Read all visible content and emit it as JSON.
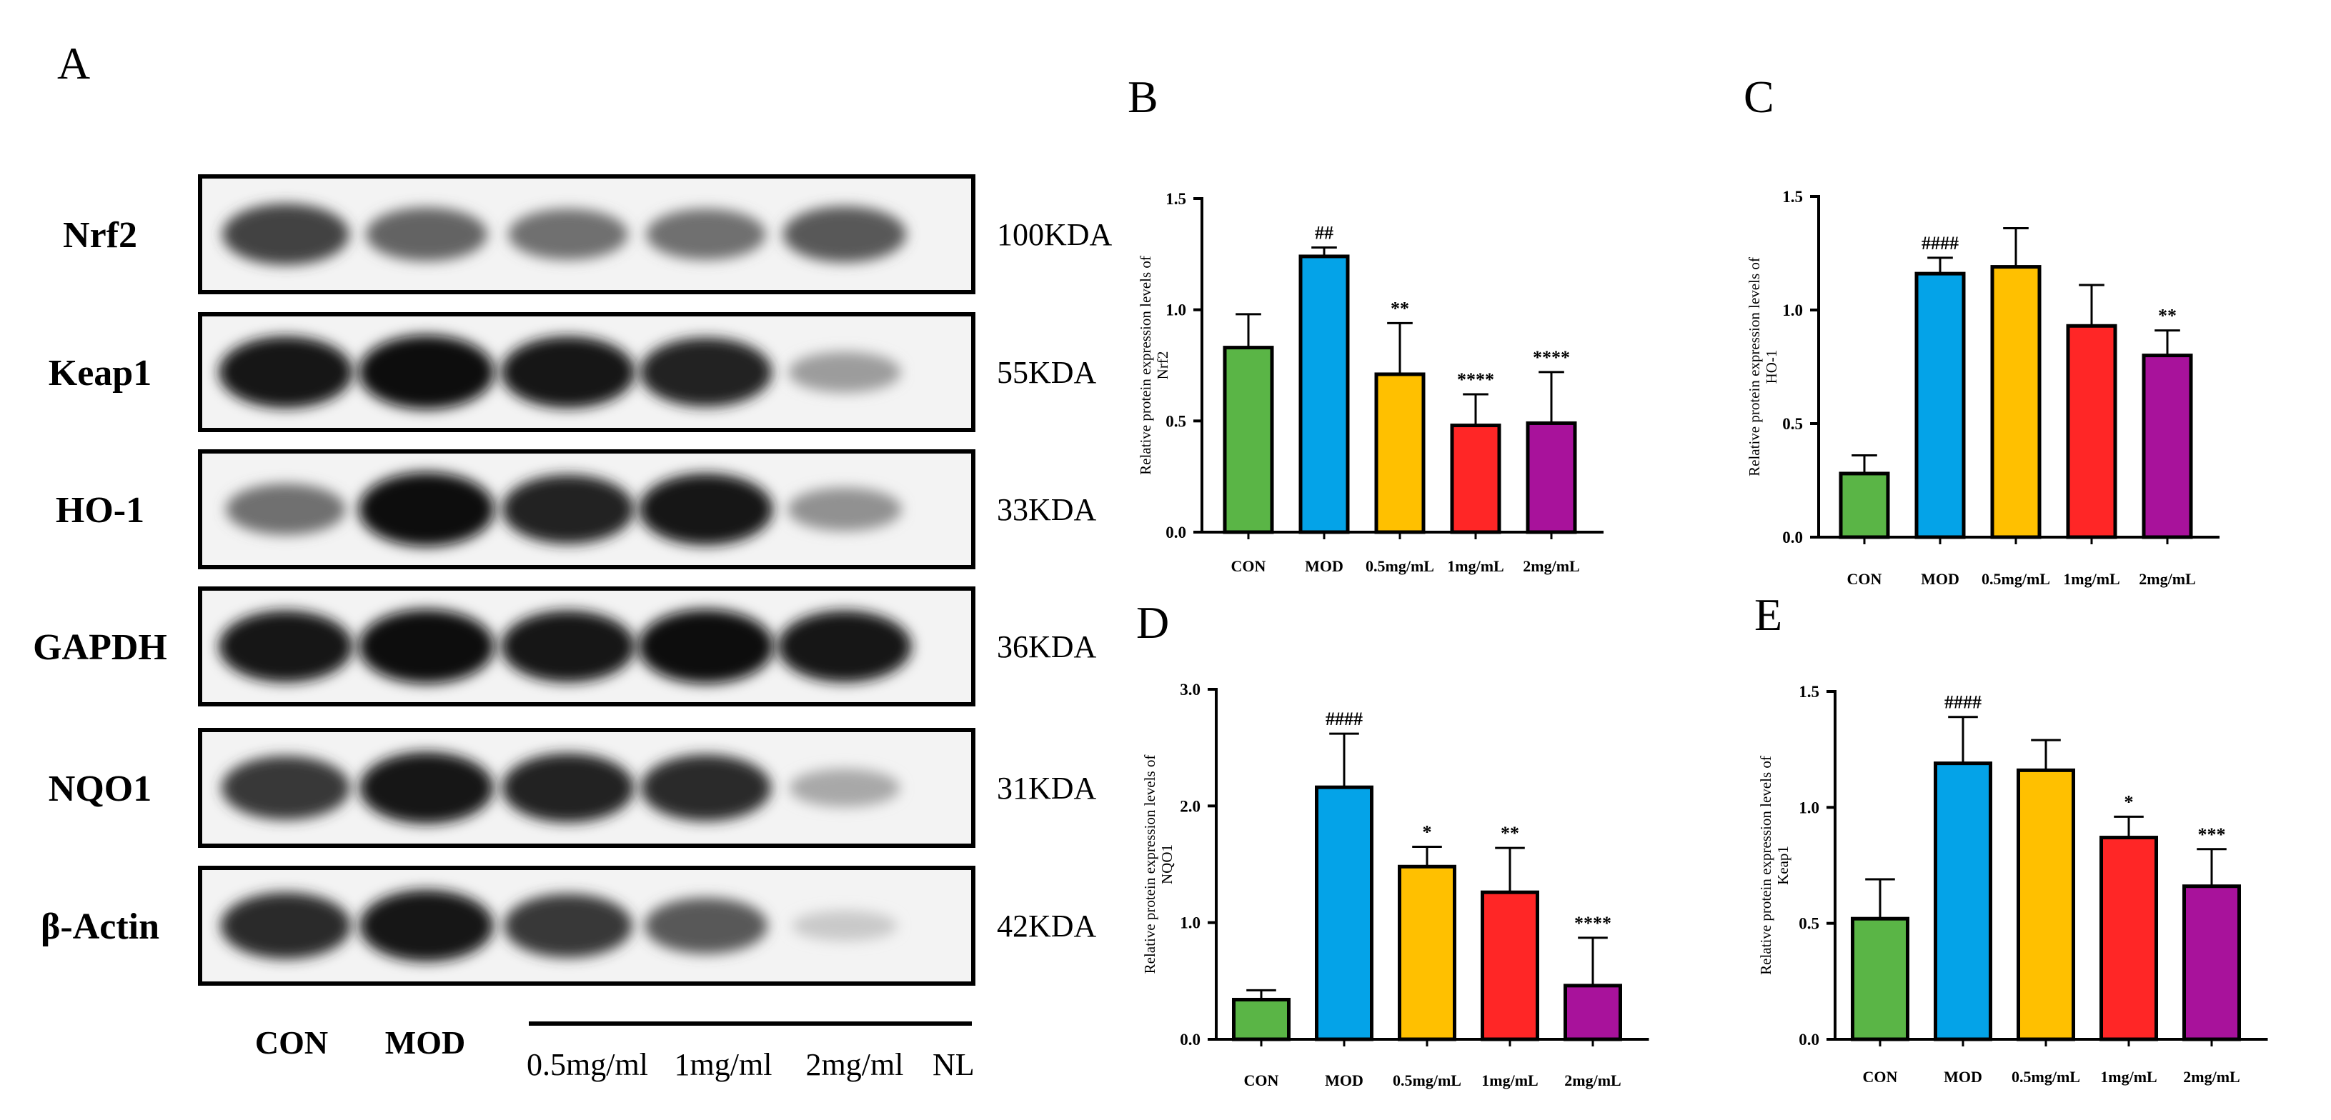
{
  "colors": {
    "CON": "#5ab546",
    "MOD": "#04a3e8",
    "0.5mg/mL": "#ffc000",
    "1mg/mL": "#ff2626",
    "2mg/mL": "#a8129b"
  },
  "panel_a": {
    "letter": "A",
    "proteins": [
      {
        "name": "Nrf2",
        "kda": "100KDA",
        "intensities": [
          0.75,
          0.6,
          0.55,
          0.55,
          0.65
        ]
      },
      {
        "name": "Keap1",
        "kda": "55KDA",
        "intensities": [
          0.95,
          1.0,
          0.95,
          0.9,
          0.35
        ]
      },
      {
        "name": "HO-1",
        "kda": "33KDA",
        "intensities": [
          0.55,
          1.0,
          0.9,
          0.95,
          0.4
        ]
      },
      {
        "name": "GAPDH",
        "kda": "36KDA",
        "intensities": [
          0.95,
          1.0,
          0.95,
          1.0,
          0.95
        ]
      },
      {
        "name": "NQO1",
        "kda": "31KDA",
        "intensities": [
          0.8,
          0.95,
          0.9,
          0.85,
          0.3
        ]
      },
      {
        "name": "β-Actin",
        "kda": "42KDA",
        "intensities": [
          0.85,
          0.95,
          0.8,
          0.65,
          0.15
        ]
      }
    ],
    "lanes": {
      "con": "CON",
      "mod": "MOD",
      "dose1": "0.5mg/ml",
      "dose2": "1mg/ml",
      "dose3": "2mg/ml",
      "nl": "NL"
    }
  },
  "chart_data": [
    {
      "letter": "B",
      "type": "bar",
      "categories": [
        "CON",
        "MOD",
        "0.5mg/mL",
        "1mg/mL",
        "2mg/mL"
      ],
      "values": [
        0.83,
        1.24,
        0.71,
        0.48,
        0.49
      ],
      "errors": [
        0.15,
        0.04,
        0.23,
        0.14,
        0.23
      ],
      "significance": [
        "",
        "##",
        "**",
        "****",
        "****"
      ],
      "ylabel": [
        "Relative protein expression levels  of",
        "Nrf2"
      ],
      "ylim": [
        0,
        1.5
      ],
      "yticks": [
        "0.0",
        "0.5",
        "1.0",
        "1.5"
      ]
    },
    {
      "letter": "C",
      "type": "bar",
      "categories": [
        "CON",
        "MOD",
        "0.5mg/mL",
        "1mg/mL",
        "2mg/mL"
      ],
      "values": [
        0.28,
        1.16,
        1.19,
        0.93,
        0.8
      ],
      "errors": [
        0.08,
        0.07,
        0.17,
        0.18,
        0.11
      ],
      "significance": [
        "",
        "####",
        "",
        "",
        "**"
      ],
      "ylabel": [
        "Relative protein expression levels  of",
        "HO-1"
      ],
      "ylim": [
        0,
        1.5
      ],
      "yticks": [
        "0.0",
        "0.5",
        "1.0",
        "1.5"
      ]
    },
    {
      "letter": "D",
      "type": "bar",
      "categories": [
        "CON",
        "MOD",
        "0.5mg/mL",
        "1mg/mL",
        "2mg/mL"
      ],
      "values": [
        0.34,
        2.16,
        1.48,
        1.26,
        0.46
      ],
      "errors": [
        0.08,
        0.46,
        0.17,
        0.38,
        0.41
      ],
      "significance": [
        "",
        "####",
        "*",
        "**",
        "****"
      ],
      "ylabel": [
        "Relative protein expression levels  of",
        "NQO1"
      ],
      "ylim": [
        0,
        3.0
      ],
      "yticks": [
        "0.0",
        "1.0",
        "2.0",
        "3.0"
      ]
    },
    {
      "letter": "E",
      "type": "bar",
      "categories": [
        "CON",
        "MOD",
        "0.5mg/mL",
        "1mg/mL",
        "2mg/mL"
      ],
      "values": [
        0.52,
        1.19,
        1.16,
        0.87,
        0.66
      ],
      "errors": [
        0.17,
        0.2,
        0.13,
        0.09,
        0.16
      ],
      "significance": [
        "",
        "####",
        "",
        "*",
        "***"
      ],
      "ylabel": [
        "Relative protein expression levels  of",
        "Keap1"
      ],
      "ylim": [
        0,
        1.5
      ],
      "yticks": [
        "0.0",
        "0.5",
        "1.0",
        "1.5"
      ]
    }
  ]
}
